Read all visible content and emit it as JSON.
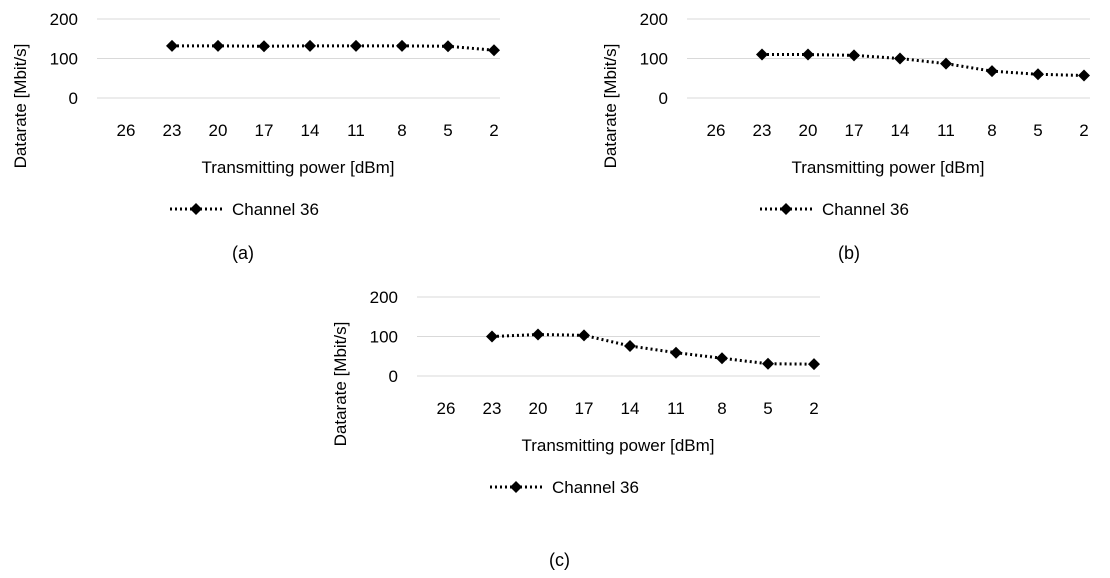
{
  "charts": [
    {
      "caption": "(a)",
      "chart_data": {
        "type": "line",
        "categories": [
          "26",
          "23",
          "20",
          "17",
          "14",
          "11",
          "8",
          "5",
          "2"
        ],
        "series": [
          {
            "name": "Channel 36",
            "values": [
              null,
              132,
              132,
              131,
              132,
              132,
              132,
              131,
              121
            ]
          }
        ],
        "xlabel": "Transmitting power [dBm]",
        "ylabel": "Datarate [Mbit/s]",
        "ylim": [
          0,
          200
        ],
        "yticks": [
          0,
          100,
          200
        ],
        "grid": true,
        "legend": "bottom"
      }
    },
    {
      "caption": "(b)",
      "chart_data": {
        "type": "line",
        "categories": [
          "26",
          "23",
          "20",
          "17",
          "14",
          "11",
          "8",
          "5",
          "2"
        ],
        "series": [
          {
            "name": "Channel 36",
            "values": [
              null,
              110,
              110,
              108,
              100,
              87,
              68,
              60,
              57
            ]
          }
        ],
        "xlabel": "Transmitting power [dBm]",
        "ylabel": "Datarate [Mbit/s]",
        "ylim": [
          0,
          200
        ],
        "yticks": [
          0,
          100,
          200
        ],
        "grid": true,
        "legend": "bottom"
      }
    },
    {
      "caption": "(c)",
      "chart_data": {
        "type": "line",
        "categories": [
          "26",
          "23",
          "20",
          "17",
          "14",
          "11",
          "8",
          "5",
          "2"
        ],
        "series": [
          {
            "name": "Channel 36",
            "values": [
              null,
              100,
              105,
              103,
              76,
              59,
              45,
              31,
              30
            ]
          }
        ],
        "xlabel": "Transmitting power [dBm]",
        "ylabel": "Datarate [Mbit/s]",
        "ylim": [
          0,
          200
        ],
        "yticks": [
          0,
          100,
          200
        ],
        "grid": true,
        "legend": "bottom"
      }
    }
  ]
}
